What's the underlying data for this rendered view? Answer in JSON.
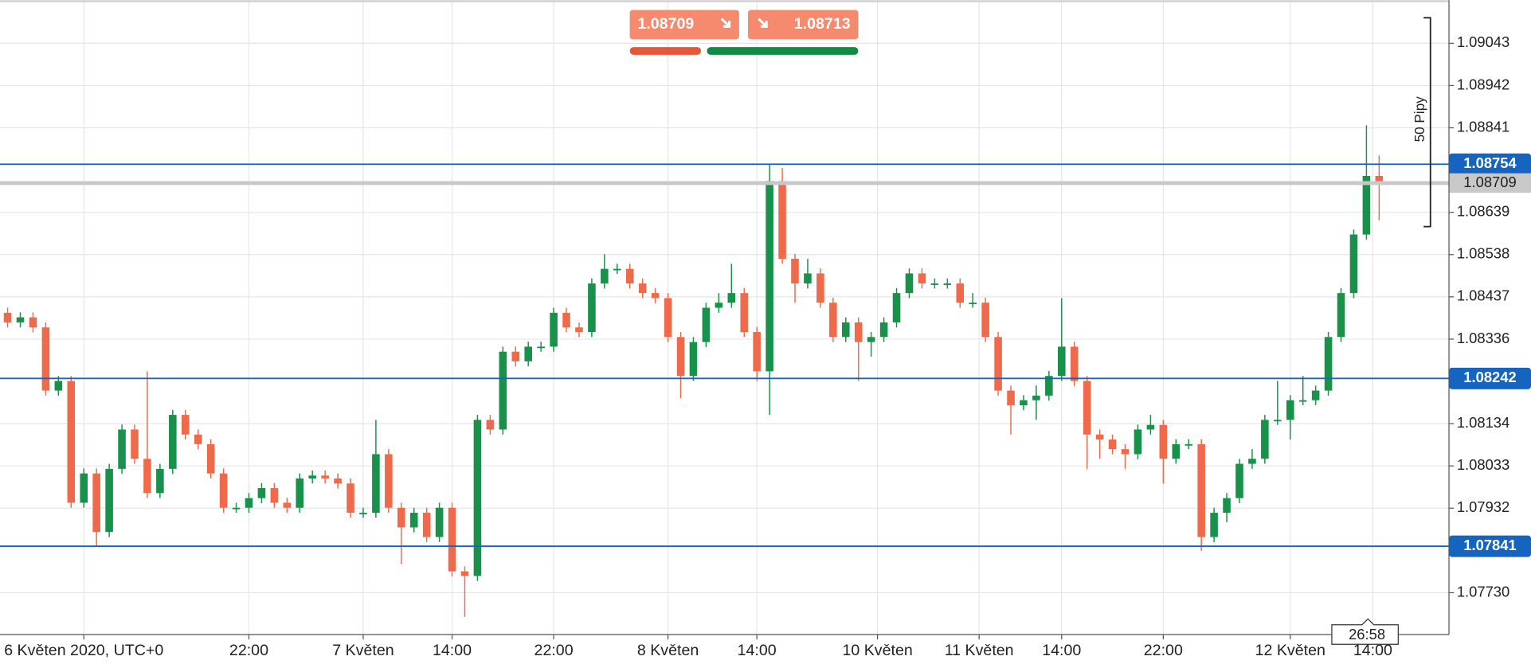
{
  "chart_data": {
    "type": "candlestick",
    "up_color": "#18914a",
    "down_color": "#ef6a4b",
    "xlim": [
      2.4,
      116.5
    ],
    "ylim": [
      1.0763,
      1.09146
    ],
    "xticks": [
      {
        "value": 9,
        "label": "6 Květen 2020, UTC+0"
      },
      {
        "value": 22,
        "label": "22:00"
      },
      {
        "value": 31,
        "label": "7 Květen"
      },
      {
        "value": 38,
        "label": "14:00"
      },
      {
        "value": 46,
        "label": "22:00"
      },
      {
        "value": 55,
        "label": "8 Květen"
      },
      {
        "value": 62,
        "label": "14:00"
      },
      {
        "value": 71.5,
        "label": "10 Květen"
      },
      {
        "value": 79.5,
        "label": "11 Květen"
      },
      {
        "value": 86,
        "label": "14:00"
      },
      {
        "value": 94,
        "label": "22:00"
      },
      {
        "value": 104,
        "label": "12 Květen"
      },
      {
        "value": 110.5,
        "label": "14:00"
      }
    ],
    "yticks": [
      1.09043,
      1.08942,
      1.08841,
      1.08639,
      1.08538,
      1.08437,
      1.08336,
      1.08134,
      1.08033,
      1.07932,
      {
        "value": 1.0773,
        "label": "1.07730"
      }
    ],
    "grid": true,
    "x": [
      3,
      4,
      5,
      6,
      7,
      8,
      9,
      10,
      11,
      12,
      13,
      14,
      15,
      16,
      17,
      18,
      19,
      20,
      21,
      22,
      23,
      24,
      25,
      26,
      27,
      28,
      29,
      30,
      31,
      32,
      33,
      34,
      35,
      36,
      37,
      38,
      39,
      40,
      41,
      42,
      43,
      44,
      45,
      46,
      47,
      48,
      49,
      50,
      51,
      52,
      53,
      54,
      55,
      56,
      57,
      58,
      59,
      60,
      61,
      62,
      63,
      64,
      65,
      66,
      67,
      68,
      69,
      70,
      71,
      72,
      73,
      74,
      75,
      76,
      77,
      78,
      79,
      80,
      81,
      82,
      83,
      84,
      85,
      86,
      87,
      88,
      89,
      90,
      91,
      92,
      93,
      94,
      95,
      96,
      97,
      98,
      99,
      100,
      101,
      102,
      103,
      104,
      105,
      106,
      107,
      108,
      109,
      110,
      111
    ],
    "open": [
      1.08399,
      1.08376,
      1.08388,
      1.08364,
      1.08213,
      1.08236,
      1.07945,
      1.08015,
      1.07875,
      1.08026,
      1.0812,
      1.0805,
      1.07968,
      1.08026,
      1.08155,
      1.08108,
      1.08085,
      1.08015,
      1.07933,
      1.07933,
      1.07956,
      1.0798,
      1.07945,
      1.07933,
      1.08003,
      1.0801,
      1.08003,
      1.07991,
      1.07921,
      1.07921,
      1.08061,
      1.07933,
      1.07886,
      1.07921,
      1.07863,
      1.07933,
      1.07781,
      1.0777,
      1.08143,
      1.0812,
      1.08306,
      1.08283,
      1.08318,
      1.08318,
      1.08399,
      1.08364,
      1.08353,
      1.08469,
      1.08504,
      1.08504,
      1.08469,
      1.08446,
      1.08434,
      1.08341,
      1.08248,
      1.08329,
      1.08411,
      1.08423,
      1.08446,
      1.08353,
      1.08259,
      1.08714,
      1.08528,
      1.08469,
      1.08493,
      1.08423,
      1.08341,
      1.08376,
      1.08329,
      1.08341,
      1.08376,
      1.08446,
      1.08493,
      1.08469,
      1.08469,
      1.08469,
      1.08423,
      1.08423,
      1.08341,
      1.08213,
      1.08178,
      1.0819,
      1.08201,
      1.08248,
      1.08318,
      1.08236,
      1.08108,
      1.08096,
      1.08073,
      1.08061,
      1.0812,
      1.08131,
      1.0805,
      1.08085,
      1.08085,
      1.07863,
      1.07921,
      1.07956,
      1.08038,
      1.0805,
      1.08143,
      1.08143,
      1.0819,
      1.0819,
      1.08213,
      1.08341,
      1.08446,
      1.08586,
      1.08726
    ],
    "high": [
      1.08411,
      1.084,
      1.084,
      1.08376,
      1.08248,
      1.08248,
      1.08027,
      1.08027,
      1.08038,
      1.08132,
      1.08132,
      1.08259,
      1.08038,
      1.08167,
      1.08167,
      1.0812,
      1.08097,
      1.08027,
      1.07945,
      1.07968,
      1.07992,
      1.07992,
      1.07957,
      1.08015,
      1.08022,
      1.08022,
      1.08015,
      1.08003,
      1.07933,
      1.08143,
      1.08073,
      1.07945,
      1.07933,
      1.07933,
      1.07945,
      1.07945,
      1.07793,
      1.08155,
      1.08155,
      1.08318,
      1.08318,
      1.0833,
      1.0833,
      1.08411,
      1.08411,
      1.08376,
      1.08481,
      1.08539,
      1.08516,
      1.08516,
      1.08481,
      1.08458,
      1.08446,
      1.08353,
      1.08341,
      1.08423,
      1.08446,
      1.08516,
      1.08458,
      1.08365,
      1.08754,
      1.08745,
      1.0854,
      1.08528,
      1.08505,
      1.08435,
      1.08388,
      1.08388,
      1.08353,
      1.08388,
      1.08458,
      1.08505,
      1.08505,
      1.08481,
      1.08481,
      1.08481,
      1.08446,
      1.08435,
      1.08353,
      1.08225,
      1.08202,
      1.08225,
      1.0826,
      1.08434,
      1.0833,
      1.08248,
      1.0812,
      1.08108,
      1.08085,
      1.08132,
      1.08155,
      1.08143,
      1.08097,
      1.08097,
      1.08097,
      1.07933,
      1.07968,
      1.0805,
      1.08073,
      1.08155,
      1.08236,
      1.08202,
      1.08248,
      1.08225,
      1.08353,
      1.08458,
      1.08598,
      1.08847,
      1.08775
    ],
    "low": [
      1.08364,
      1.08364,
      1.08352,
      1.08201,
      1.08201,
      1.07933,
      1.07933,
      1.0784,
      1.07863,
      1.08014,
      1.08038,
      1.07956,
      1.07956,
      1.08014,
      1.08096,
      1.08073,
      1.08003,
      1.07921,
      1.07921,
      1.07921,
      1.07944,
      1.07933,
      1.07921,
      1.07921,
      1.07991,
      1.07991,
      1.07979,
      1.07909,
      1.07909,
      1.07909,
      1.07921,
      1.07798,
      1.07874,
      1.07851,
      1.07851,
      1.07769,
      1.07672,
      1.07758,
      1.08108,
      1.08108,
      1.08271,
      1.08271,
      1.08306,
      1.08306,
      1.08352,
      1.08341,
      1.08341,
      1.08457,
      1.08492,
      1.08457,
      1.08434,
      1.08422,
      1.08329,
      1.08195,
      1.08236,
      1.08317,
      1.08399,
      1.08411,
      1.08341,
      1.08236,
      1.08155,
      1.08516,
      1.08423,
      1.08457,
      1.08411,
      1.08329,
      1.08329,
      1.08236,
      1.08294,
      1.08329,
      1.08364,
      1.08434,
      1.08457,
      1.08457,
      1.08457,
      1.08411,
      1.08411,
      1.08329,
      1.08201,
      1.08108,
      1.08166,
      1.08143,
      1.08189,
      1.08236,
      1.08224,
      1.08026,
      1.0805,
      1.08061,
      1.08026,
      1.08049,
      1.08108,
      1.07991,
      1.08038,
      1.08073,
      1.0783,
      1.07851,
      1.07898,
      1.07944,
      1.08026,
      1.08038,
      1.08131,
      1.08096,
      1.08178,
      1.08178,
      1.08201,
      1.08329,
      1.08434,
      1.08574,
      1.0862
    ],
    "close": [
      1.08376,
      1.08388,
      1.08364,
      1.08213,
      1.08236,
      1.07945,
      1.08015,
      1.07875,
      1.08026,
      1.0812,
      1.0805,
      1.07968,
      1.08026,
      1.08155,
      1.08108,
      1.08085,
      1.08015,
      1.07933,
      1.07933,
      1.07956,
      1.0798,
      1.07945,
      1.07933,
      1.08003,
      1.0801,
      1.08003,
      1.07991,
      1.07921,
      1.07921,
      1.08061,
      1.07933,
      1.07886,
      1.07921,
      1.07863,
      1.07933,
      1.07781,
      1.0777,
      1.08143,
      1.0812,
      1.08306,
      1.08283,
      1.08318,
      1.08318,
      1.08399,
      1.08364,
      1.08353,
      1.08469,
      1.08504,
      1.08504,
      1.08469,
      1.08446,
      1.08434,
      1.08341,
      1.08248,
      1.08329,
      1.08411,
      1.08423,
      1.08446,
      1.08353,
      1.08259,
      1.08714,
      1.08528,
      1.08469,
      1.08493,
      1.08423,
      1.08341,
      1.08376,
      1.08329,
      1.08341,
      1.08376,
      1.08446,
      1.08493,
      1.08469,
      1.08469,
      1.08469,
      1.08423,
      1.08423,
      1.08341,
      1.08213,
      1.08178,
      1.0819,
      1.08201,
      1.08248,
      1.08318,
      1.08236,
      1.08108,
      1.08096,
      1.08073,
      1.08061,
      1.0812,
      1.08131,
      1.0805,
      1.08085,
      1.08085,
      1.07863,
      1.07921,
      1.07956,
      1.08038,
      1.0805,
      1.08143,
      1.08143,
      1.0819,
      1.0819,
      1.08213,
      1.08341,
      1.08446,
      1.08586,
      1.08726,
      1.08709
    ],
    "price_lines": [
      {
        "value": 1.08754,
        "color": "#1565c0"
      },
      {
        "value": 1.08242,
        "color": "#1565c0"
      },
      {
        "value": 1.07841,
        "color": "#1565c0"
      }
    ],
    "current_price": {
      "value": 1.08709,
      "color": "#c8c8c8"
    },
    "range_label": "50 Pipy",
    "timer": "26:58"
  },
  "trade_panel": {
    "sell": 1.08709,
    "buy": 1.08713
  }
}
